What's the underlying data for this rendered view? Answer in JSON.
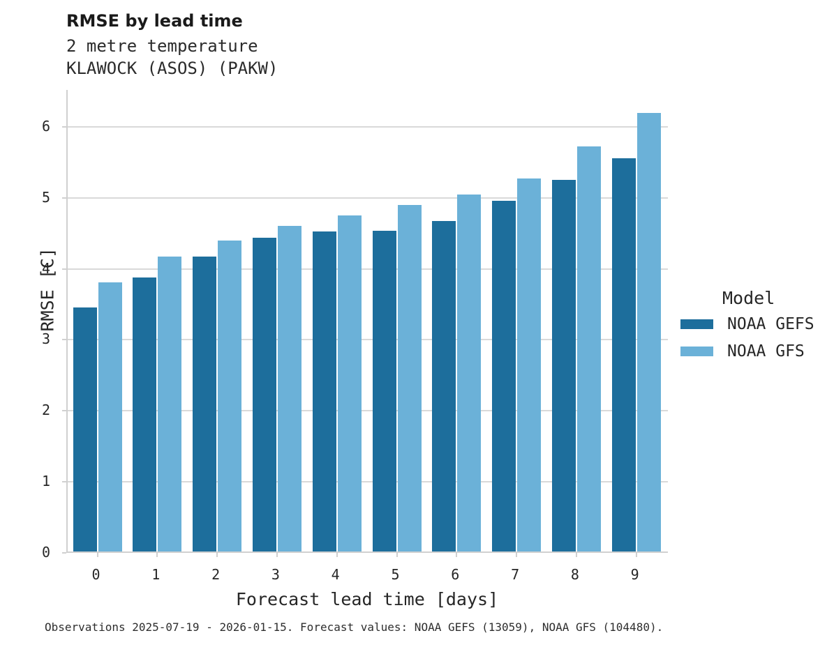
{
  "header": {
    "title": "RMSE by lead time",
    "subtitle_line1": "2 metre temperature",
    "subtitle_line2": "KLAWOCK (ASOS) (PAKW)"
  },
  "chart_data": {
    "type": "bar",
    "title": "RMSE by lead time",
    "subtitle": [
      "2 metre temperature",
      "KLAWOCK (ASOS) (PAKW)"
    ],
    "categories": [
      "0",
      "1",
      "2",
      "3",
      "4",
      "5",
      "6",
      "7",
      "8",
      "9"
    ],
    "series": [
      {
        "name": "NOAA GEFS",
        "color": "#1d6e9c",
        "values": [
          3.44,
          3.86,
          4.15,
          4.42,
          4.51,
          4.52,
          4.65,
          4.94,
          5.23,
          5.54
        ]
      },
      {
        "name": "NOAA GFS",
        "color": "#6bb1d8",
        "values": [
          3.79,
          4.15,
          4.38,
          4.59,
          4.73,
          4.88,
          5.03,
          5.25,
          5.71,
          6.18
        ]
      }
    ],
    "xlabel": "Forecast lead time [days]",
    "ylabel": "RMSE [C]",
    "ylim": [
      0,
      6.52
    ],
    "yticks": [
      "0",
      "1",
      "2",
      "3",
      "4",
      "5",
      "6"
    ],
    "grid": true,
    "legend_title": "Model",
    "legend_position": "right"
  },
  "colors": {
    "gefs": "#1d6e9c",
    "gfs": "#6bb1d8",
    "gridline": "#d9d9d9",
    "spine": "#d0d0d0",
    "text": "#262626"
  },
  "caption": "Observations 2025-07-19 - 2026-01-15. Forecast values: NOAA GEFS (13059), NOAA GFS (104480)."
}
